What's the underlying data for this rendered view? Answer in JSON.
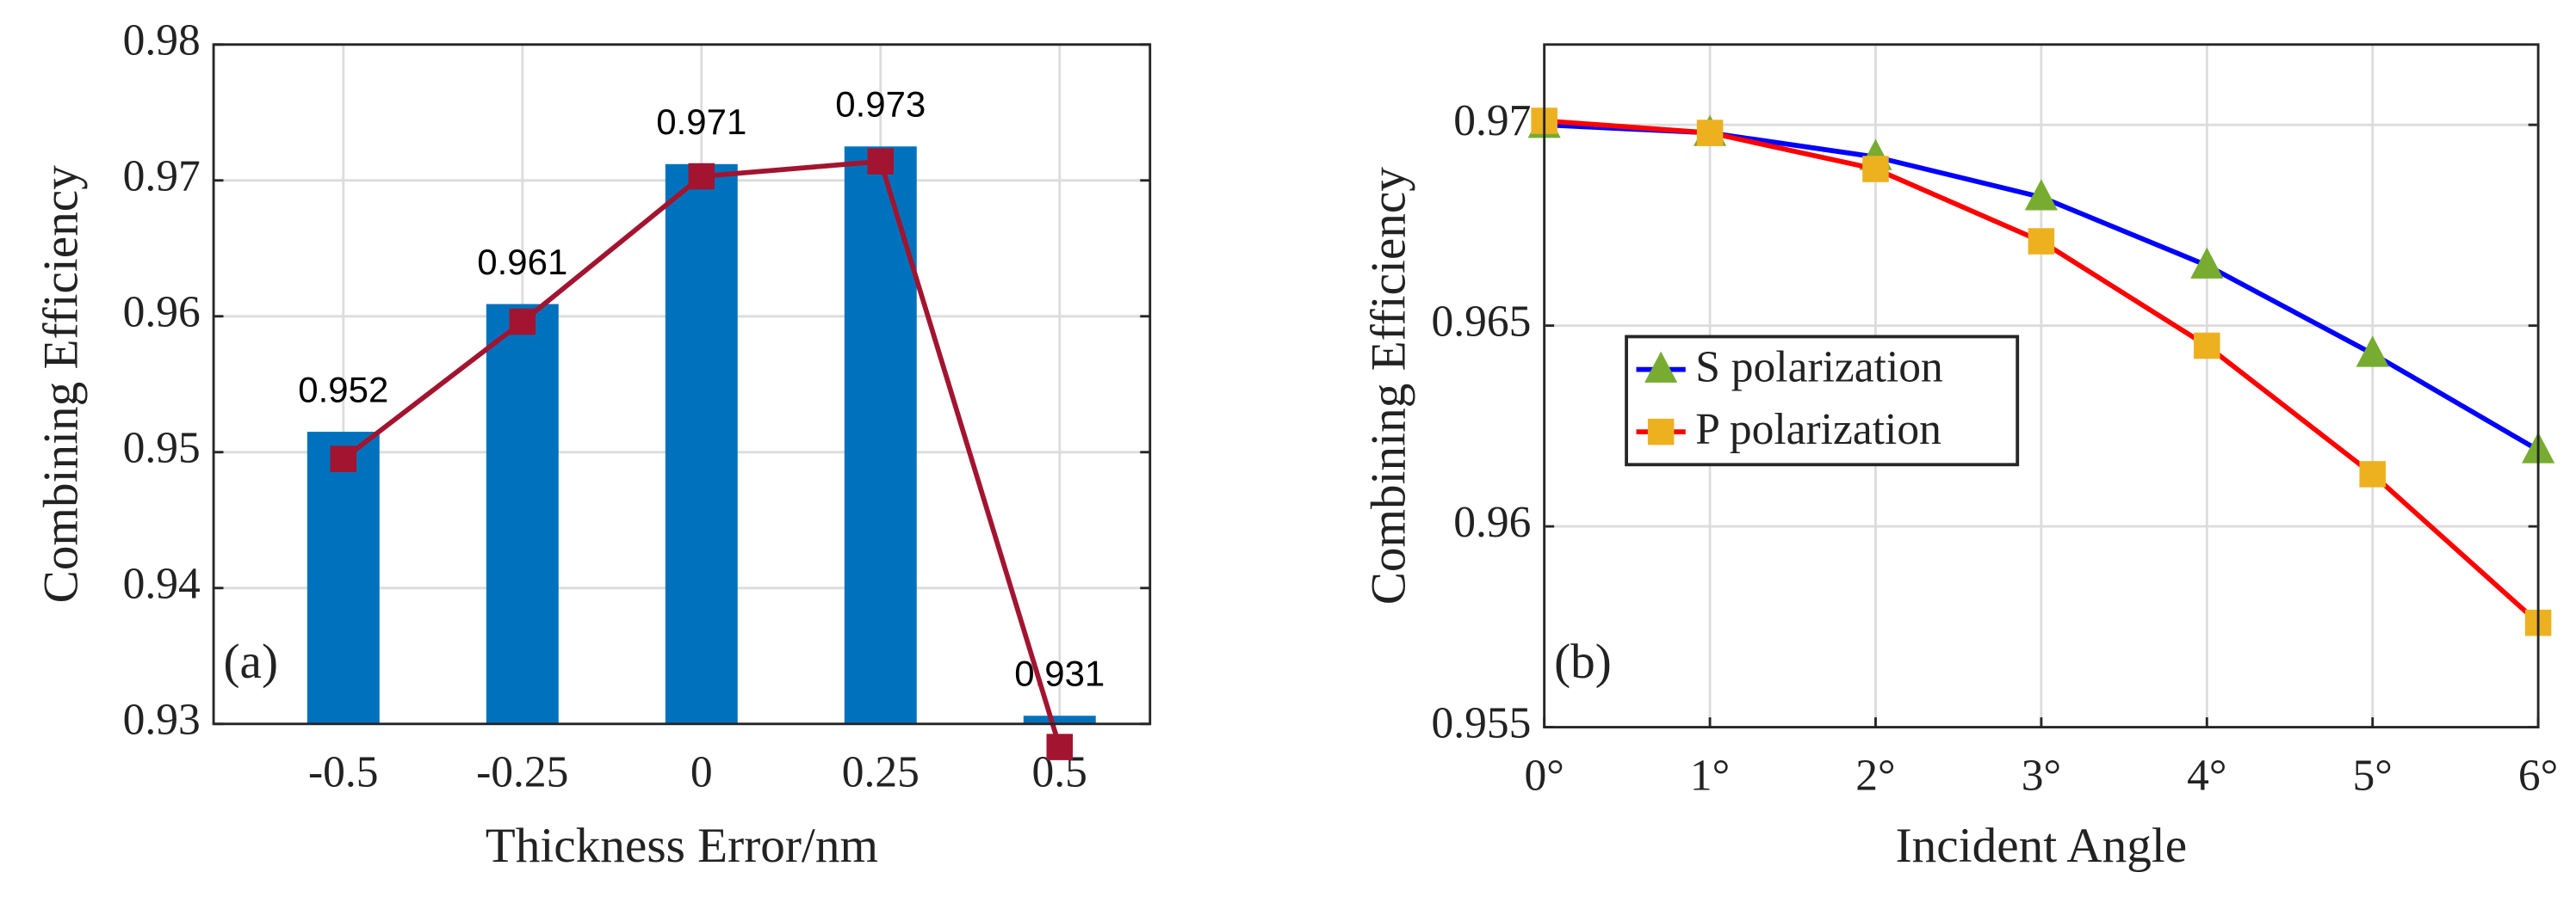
{
  "chart_data": [
    {
      "type": "bar",
      "categories": [
        "-0.5",
        "-0.25",
        "0",
        "0.25",
        "0.5"
      ],
      "series": [
        {
          "type": "bar",
          "color": "#0072bd",
          "values": [
            0.9515,
            0.9609,
            0.9712,
            0.9725,
            0.9306
          ],
          "value_labels": [
            "0.952",
            "0.961",
            "0.971",
            "0.973",
            "0.931"
          ]
        },
        {
          "type": "line",
          "color": "#a2142f",
          "marker": "square",
          "values": [
            0.9495,
            0.9596,
            0.9703,
            0.9714,
            0.9283
          ]
        }
      ],
      "ylim": [
        0.93,
        0.98
      ],
      "yticks": [
        0.93,
        0.94,
        0.95,
        0.96,
        0.97,
        0.98
      ],
      "ylabel": "Combining Efficiency",
      "xlabel": "Thickness Error/nm",
      "annotation": "(a)",
      "grid": true
    },
    {
      "type": "line",
      "x": [
        0,
        1,
        2,
        3,
        4,
        5,
        6
      ],
      "series": [
        {
          "name": "S polarization",
          "color": "#0000ff",
          "marker": "triangle",
          "marker_color": "#77ac30",
          "values": [
            0.97,
            0.9698,
            0.9692,
            0.9682,
            0.9665,
            0.9643,
            0.9619
          ]
        },
        {
          "name": "P polarization",
          "color": "#ff0000",
          "marker": "square",
          "marker_color": "#edb120",
          "values": [
            0.9701,
            0.9698,
            0.9689,
            0.9671,
            0.9645,
            0.9613,
            0.9576
          ]
        }
      ],
      "xlim": [
        0,
        6
      ],
      "xticks": [
        {
          "value": 0,
          "label": "0°"
        },
        {
          "value": 1,
          "label": "1°"
        },
        {
          "value": 2,
          "label": "2°"
        },
        {
          "value": 3,
          "label": "3°"
        },
        {
          "value": 4,
          "label": "4°"
        },
        {
          "value": 5,
          "label": "5°"
        },
        {
          "value": 6,
          "label": "6°"
        }
      ],
      "ylim": [
        0.955,
        0.972
      ],
      "yticks": [
        0.955,
        0.96,
        0.965,
        0.97
      ],
      "ylabel": "Combining Efficiency",
      "xlabel": "Incident Angle",
      "annotation": "(b)",
      "legend": "left",
      "grid": true
    }
  ]
}
